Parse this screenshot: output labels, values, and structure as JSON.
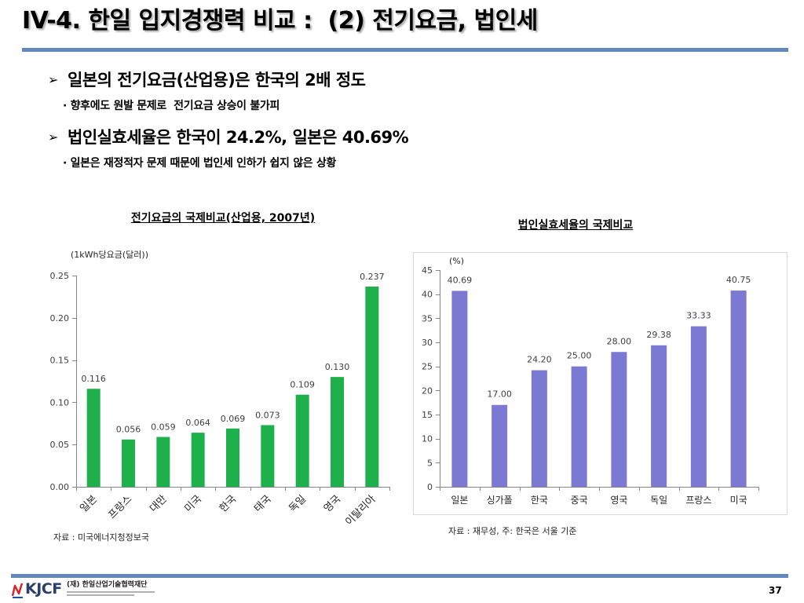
{
  "slide": {
    "title": "IV-4. 한일 입지경쟁력 비교 :  (2) 전기요금, 법인세",
    "page_number": "37",
    "rule_color": "#6289bd"
  },
  "bullets": [
    {
      "marker": "➢",
      "text": "일본의 전기요금(산업용)은 한국의 2배 정도",
      "note": "· 향후에도 원발 문제로  전기요금 상승이 불가피"
    },
    {
      "marker": "➢",
      "text": "법인실효세율은 한국이 24.2%, 일본은 40.69%",
      "note": "· 일본은 재정적자 문제 때문에 법인세 인하가 쉽지 않은 상황"
    }
  ],
  "footer": {
    "logo_mark": "KJCF",
    "logo_org": "(재) 한일산업기술협력재단"
  },
  "chart_data": [
    {
      "type": "bar",
      "title": "전기요금의 국제비교(산업용, 2007년)",
      "unit_label": "(1kWh당요금(달러))",
      "categories": [
        "일본",
        "프랑스",
        "대만",
        "미국",
        "한국",
        "태국",
        "독일",
        "영국",
        "이탈리아"
      ],
      "values": [
        0.116,
        0.056,
        0.059,
        0.064,
        0.069,
        0.073,
        0.109,
        0.13,
        0.237
      ],
      "data_labels": [
        "0.116",
        "0.056",
        "0.059",
        "0.064",
        "0.069",
        "0.073",
        "0.109",
        "0.130",
        "0.237"
      ],
      "yticks": [
        "0.00",
        "0.05",
        "0.10",
        "0.15",
        "0.20",
        "0.25"
      ],
      "ylim": [
        0,
        0.25
      ],
      "grid": false,
      "bar_color": "#1eb04b",
      "source": "자료 : 미국에너지청정보국"
    },
    {
      "type": "bar",
      "title": "법인실효세율의 국제비교",
      "unit_label": "(%)",
      "categories": [
        "일본",
        "싱가폴",
        "한국",
        "중국",
        "영국",
        "독일",
        "프랑스",
        "미국"
      ],
      "values": [
        40.69,
        17.0,
        24.2,
        25.0,
        28.0,
        29.38,
        33.33,
        40.75
      ],
      "data_labels": [
        "40.69",
        "17.00",
        "24.20",
        "25.00",
        "28.00",
        "29.38",
        "33.33",
        "40.75"
      ],
      "yticks": [
        "0",
        "5",
        "10",
        "15",
        "20",
        "25",
        "30",
        "35",
        "40",
        "45"
      ],
      "ylim": [
        0,
        45
      ],
      "grid": false,
      "bar_color": "#7b79d2",
      "source": "자료 : 재무성, 주: 한국은 서울 기준"
    }
  ]
}
